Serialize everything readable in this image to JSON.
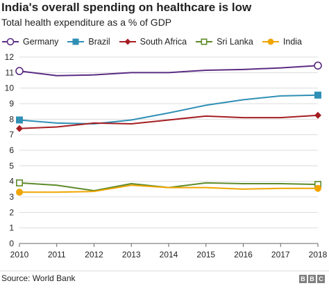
{
  "chart_data": {
    "type": "line",
    "title": "India's overall spending on healthcare is low",
    "subtitle": "Total health expenditure as a % of GDP",
    "source": "Source: World Bank",
    "logo": "BBC",
    "x": [
      2010,
      2011,
      2012,
      2013,
      2014,
      2015,
      2016,
      2017,
      2018
    ],
    "ylim": [
      0,
      12
    ],
    "yticks": [
      0,
      1,
      2,
      3,
      4,
      5,
      6,
      7,
      8,
      9,
      10,
      11,
      12
    ],
    "grid": true,
    "legend_position": "top-left",
    "series": [
      {
        "name": "Germany",
        "color": "#5b2c83",
        "marker": "open-circle",
        "values": [
          11.1,
          10.8,
          10.85,
          11.0,
          11.0,
          11.15,
          11.2,
          11.3,
          11.45
        ]
      },
      {
        "name": "Brazil",
        "color": "#2f8fb5",
        "marker": "filled-square",
        "values": [
          7.95,
          7.75,
          7.7,
          7.95,
          8.4,
          8.9,
          9.25,
          9.5,
          9.55
        ]
      },
      {
        "name": "South Africa",
        "color": "#a51e22",
        "marker": "filled-diamond",
        "values": [
          7.4,
          7.5,
          7.75,
          7.7,
          7.95,
          8.2,
          8.1,
          8.1,
          8.25
        ]
      },
      {
        "name": "Sri Lanka",
        "color": "#5c8a2a",
        "marker": "open-square",
        "values": [
          3.9,
          3.75,
          3.4,
          3.85,
          3.6,
          3.9,
          3.85,
          3.85,
          3.8
        ]
      },
      {
        "name": "India",
        "color": "#f0a500",
        "marker": "filled-circle",
        "values": [
          3.3,
          3.3,
          3.35,
          3.75,
          3.6,
          3.6,
          3.5,
          3.55,
          3.55
        ]
      }
    ]
  }
}
